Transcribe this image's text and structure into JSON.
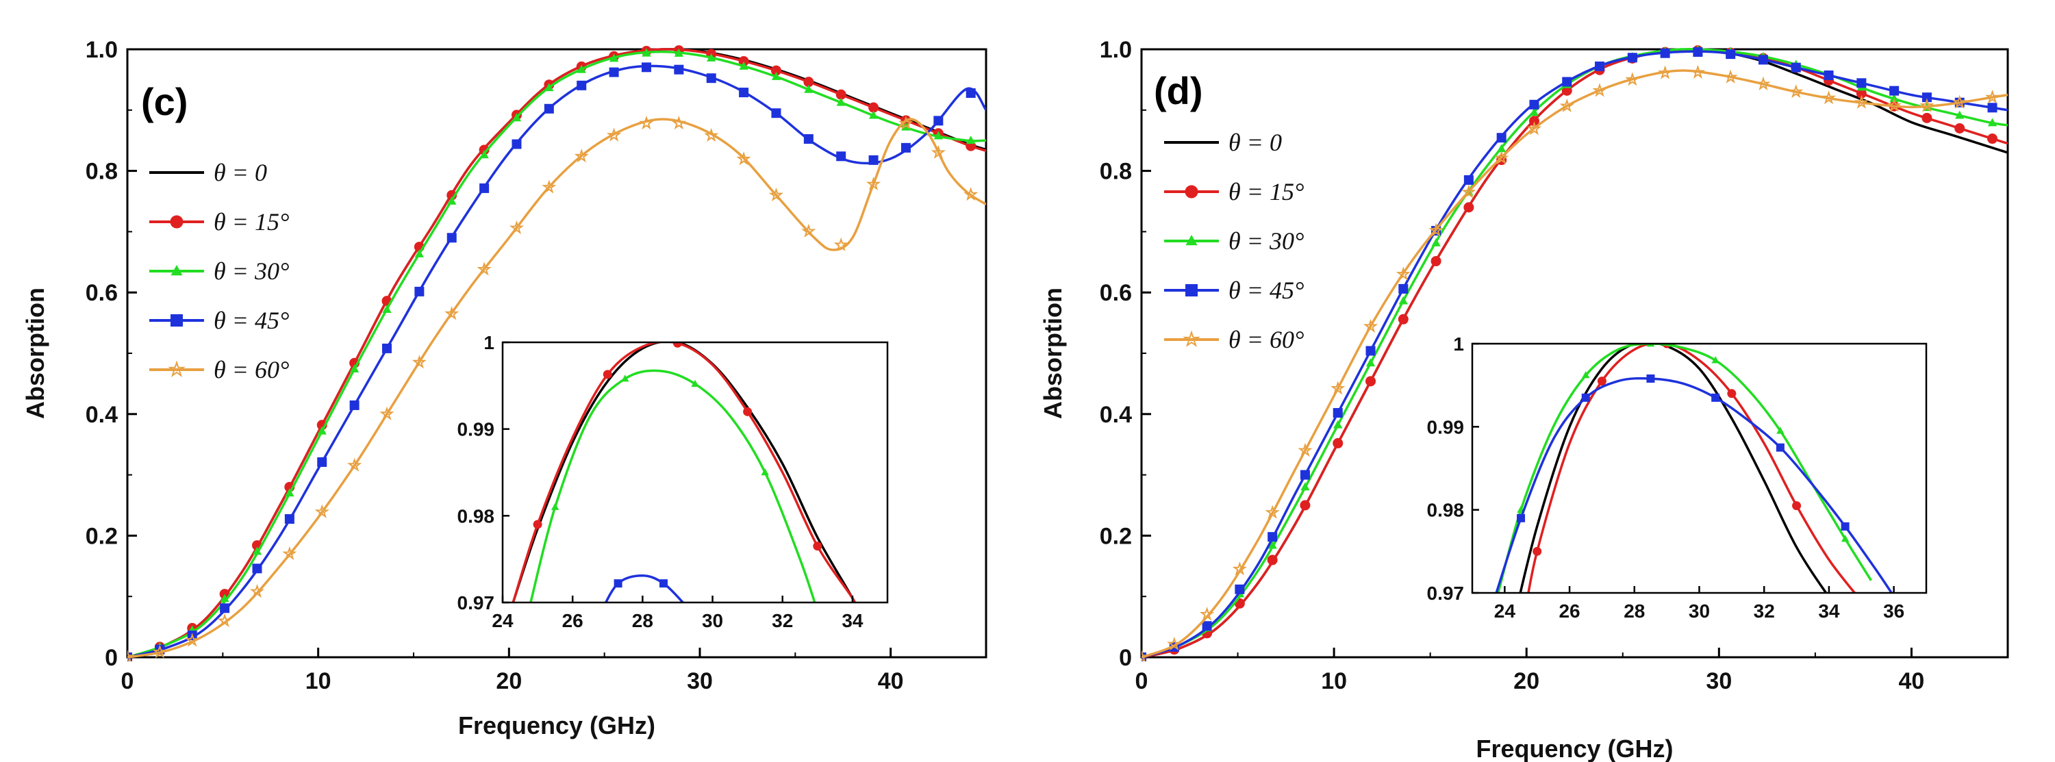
{
  "chart_data": [
    {
      "type": "line",
      "panel_label": "(c)",
      "xlabel": "Frequency (GHz)",
      "ylabel": "Absorption",
      "xlim": [
        0,
        45
      ],
      "ylim": [
        0,
        1.0
      ],
      "xticks": [
        0,
        10,
        20,
        30,
        40
      ],
      "yticks": [
        0,
        0.2,
        0.4,
        0.6,
        0.8,
        1.0
      ],
      "xtick_labels": [
        "0",
        "10",
        "20",
        "30",
        "40"
      ],
      "ytick_labels": [
        "0",
        "0.2",
        "0.4",
        "0.6",
        "0.8",
        "1.0"
      ],
      "legend_position": "upper-left",
      "series": [
        {
          "name": "θ = 0",
          "color": "#000000",
          "marker": "none",
          "x": [
            0,
            2,
            4,
            6,
            8,
            10,
            12,
            14,
            16,
            18,
            20,
            22,
            24,
            26,
            28,
            30,
            32,
            34,
            36,
            38,
            40,
            42,
            44,
            45
          ],
          "y": [
            0,
            0.02,
            0.06,
            0.14,
            0.25,
            0.37,
            0.49,
            0.61,
            0.71,
            0.81,
            0.88,
            0.94,
            0.975,
            0.993,
            1.0,
            0.997,
            0.985,
            0.967,
            0.945,
            0.92,
            0.895,
            0.87,
            0.845,
            0.835
          ]
        },
        {
          "name": "θ = 15°",
          "color": "#e02020",
          "marker": "circle",
          "x": [
            0,
            2,
            4,
            6,
            8,
            10,
            12,
            14,
            16,
            18,
            20,
            22,
            24,
            26,
            28,
            30,
            32,
            34,
            36,
            38,
            40,
            42,
            44,
            45
          ],
          "y": [
            0,
            0.02,
            0.06,
            0.14,
            0.25,
            0.37,
            0.49,
            0.61,
            0.71,
            0.81,
            0.88,
            0.94,
            0.975,
            0.993,
            1.0,
            0.996,
            0.983,
            0.965,
            0.943,
            0.918,
            0.893,
            0.868,
            0.843,
            0.833
          ]
        },
        {
          "name": "θ = 30°",
          "color": "#22dd22",
          "marker": "triangle",
          "x": [
            0,
            2,
            4,
            6,
            8,
            10,
            12,
            14,
            16,
            18,
            20,
            22,
            24,
            26,
            28,
            30,
            32,
            34,
            36,
            38,
            40,
            42,
            44,
            45
          ],
          "y": [
            0,
            0.02,
            0.055,
            0.13,
            0.24,
            0.36,
            0.48,
            0.595,
            0.7,
            0.8,
            0.875,
            0.935,
            0.97,
            0.99,
            0.996,
            0.99,
            0.975,
            0.955,
            0.93,
            0.905,
            0.88,
            0.86,
            0.85,
            0.85
          ]
        },
        {
          "name": "θ = 45°",
          "color": "#1e32dc",
          "marker": "square",
          "x": [
            0,
            2,
            4,
            6,
            8,
            10,
            12,
            14,
            16,
            18,
            20,
            22,
            24,
            26,
            28,
            30,
            32,
            34,
            36,
            38,
            40,
            42,
            44,
            45
          ],
          "y": [
            0,
            0.015,
            0.045,
            0.11,
            0.2,
            0.31,
            0.42,
            0.53,
            0.64,
            0.74,
            0.83,
            0.9,
            0.945,
            0.968,
            0.972,
            0.96,
            0.935,
            0.895,
            0.845,
            0.815,
            0.82,
            0.865,
            0.935,
            0.9
          ]
        },
        {
          "name": "θ = 60°",
          "color": "#e8a040",
          "marker": "star",
          "x": [
            0,
            2,
            4,
            6,
            8,
            10,
            12,
            14,
            16,
            18,
            20,
            22,
            24,
            26,
            28,
            30,
            32,
            34,
            36,
            37,
            38,
            39,
            40,
            41,
            42,
            43,
            44,
            45
          ],
          "y": [
            0,
            0.01,
            0.035,
            0.08,
            0.15,
            0.23,
            0.32,
            0.42,
            0.52,
            0.61,
            0.69,
            0.77,
            0.83,
            0.868,
            0.885,
            0.87,
            0.83,
            0.76,
            0.69,
            0.67,
            0.69,
            0.77,
            0.85,
            0.885,
            0.86,
            0.8,
            0.765,
            0.745
          ]
        }
      ],
      "inset": {
        "xlim": [
          24,
          35
        ],
        "ylim": [
          0.97,
          1.0
        ],
        "xticks": [
          24,
          26,
          28,
          30,
          32,
          34
        ],
        "yticks": [
          0.97,
          0.98,
          0.99,
          1.0
        ],
        "xtick_labels": [
          "24",
          "26",
          "28",
          "30",
          "32",
          "34"
        ],
        "ytick_labels": [
          "0.97",
          "0.98",
          "0.99",
          "1"
        ],
        "series": [
          {
            "name": "θ = 0",
            "color": "#000000",
            "marker": "none",
            "x": [
              24.3,
              25,
              26,
              27,
              28,
              29,
              30,
              31,
              32,
              33,
              34,
              34.45
            ],
            "y": [
              0.97,
              0.9785,
              0.9885,
              0.9955,
              0.9993,
              1.0,
              0.9975,
              0.9925,
              0.986,
              0.9775,
              0.9705,
              0.9668
            ]
          },
          {
            "name": "θ = 15°",
            "color": "#e02020",
            "marker": "circle",
            "x": [
              24.3,
              25,
              26,
              27,
              28,
              29,
              30,
              31,
              32,
              33,
              34,
              34.2
            ],
            "y": [
              0.97,
              0.979,
              0.989,
              0.9963,
              0.9995,
              0.9999,
              0.9974,
              0.992,
              0.985,
              0.9765,
              0.9705,
              0.9688
            ]
          },
          {
            "name": "θ = 30°",
            "color": "#22dd22",
            "marker": "triangle",
            "x": [
              24.8,
              25.5,
              26.5,
              27.5,
              28.5,
              29.5,
              30.5,
              31.5,
              32.5,
              33
            ],
            "y": [
              0.97,
              0.981,
              0.9915,
              0.9958,
              0.9967,
              0.9952,
              0.9915,
              0.985,
              0.975,
              0.969
            ]
          },
          {
            "name": "θ = 45°",
            "color": "#1e32dc",
            "marker": "square",
            "x": [
              26.8,
              27.3,
              28,
              28.6,
              29.2
            ],
            "y": [
              0.9688,
              0.9722,
              0.9731,
              0.9722,
              0.9698
            ]
          }
        ]
      }
    },
    {
      "type": "line",
      "panel_label": "(d)",
      "xlabel": "Frequency (GHz)",
      "ylabel": "Absorption",
      "xlim": [
        0,
        45
      ],
      "ylim": [
        0,
        1.0
      ],
      "xticks": [
        0,
        10,
        20,
        30,
        40
      ],
      "yticks": [
        0,
        0.2,
        0.4,
        0.6,
        0.8,
        1.0
      ],
      "xtick_labels": [
        "0",
        "10",
        "20",
        "30",
        "40"
      ],
      "ytick_labels": [
        "0",
        "0.2",
        "0.4",
        "0.6",
        "0.8",
        "1.0"
      ],
      "legend_position": "upper-left",
      "series": [
        {
          "name": "θ = 0",
          "color": "#000000",
          "marker": "none",
          "x": [
            0,
            2,
            4,
            6,
            8,
            10,
            12,
            14,
            16,
            18,
            20,
            22,
            24,
            26,
            28,
            30,
            32,
            34,
            36,
            38,
            40,
            42,
            44,
            45
          ],
          "y": [
            0,
            0.015,
            0.05,
            0.12,
            0.22,
            0.34,
            0.46,
            0.58,
            0.69,
            0.79,
            0.87,
            0.93,
            0.97,
            0.99,
            0.999,
            0.996,
            0.983,
            0.96,
            0.935,
            0.91,
            0.88,
            0.86,
            0.84,
            0.83
          ]
        },
        {
          "name": "θ = 15°",
          "color": "#e02020",
          "marker": "circle",
          "x": [
            0,
            2,
            4,
            6,
            8,
            10,
            12,
            14,
            16,
            18,
            20,
            22,
            24,
            26,
            28,
            30,
            32,
            34,
            36,
            38,
            40,
            42,
            44,
            45
          ],
          "y": [
            0,
            0.015,
            0.05,
            0.12,
            0.22,
            0.34,
            0.46,
            0.58,
            0.69,
            0.79,
            0.87,
            0.93,
            0.97,
            0.99,
            0.999,
            0.997,
            0.988,
            0.97,
            0.945,
            0.92,
            0.895,
            0.875,
            0.855,
            0.845
          ]
        },
        {
          "name": "θ = 30°",
          "color": "#22dd22",
          "marker": "triangle",
          "x": [
            0,
            2,
            4,
            6,
            8,
            10,
            12,
            14,
            16,
            18,
            20,
            22,
            24,
            26,
            28,
            30,
            32,
            34,
            36,
            38,
            40,
            42,
            44,
            45
          ],
          "y": [
            0,
            0.02,
            0.06,
            0.14,
            0.25,
            0.37,
            0.49,
            0.61,
            0.72,
            0.81,
            0.885,
            0.94,
            0.975,
            0.992,
            1.0,
            0.998,
            0.99,
            0.975,
            0.955,
            0.93,
            0.91,
            0.895,
            0.88,
            0.875
          ]
        },
        {
          "name": "θ = 45°",
          "color": "#1e32dc",
          "marker": "square",
          "x": [
            0,
            2,
            4,
            6,
            8,
            10,
            12,
            14,
            16,
            18,
            20,
            22,
            24,
            26,
            28,
            30,
            32,
            34,
            36,
            38,
            40,
            42,
            44,
            45
          ],
          "y": [
            0,
            0.02,
            0.065,
            0.15,
            0.27,
            0.39,
            0.51,
            0.63,
            0.74,
            0.83,
            0.9,
            0.945,
            0.975,
            0.99,
            0.996,
            0.995,
            0.985,
            0.97,
            0.955,
            0.94,
            0.925,
            0.915,
            0.905,
            0.9
          ]
        },
        {
          "name": "θ = 60°",
          "color": "#e8a040",
          "marker": "star",
          "x": [
            0,
            2,
            4,
            6,
            8,
            10,
            12,
            14,
            16,
            18,
            20,
            22,
            24,
            26,
            28,
            30,
            32,
            34,
            36,
            38,
            40,
            42,
            44,
            45
          ],
          "y": [
            0,
            0.025,
            0.09,
            0.19,
            0.31,
            0.43,
            0.55,
            0.65,
            0.73,
            0.8,
            0.86,
            0.905,
            0.935,
            0.955,
            0.965,
            0.958,
            0.945,
            0.93,
            0.918,
            0.91,
            0.905,
            0.91,
            0.92,
            0.925
          ]
        }
      ],
      "inset": {
        "xlim": [
          23,
          37
        ],
        "ylim": [
          0.97,
          1.0
        ],
        "xticks": [
          24,
          26,
          28,
          30,
          32,
          34,
          36
        ],
        "yticks": [
          0.97,
          0.98,
          0.99,
          1.0
        ],
        "xtick_labels": [
          "24",
          "26",
          "28",
          "30",
          "32",
          "34",
          "36"
        ],
        "ytick_labels": [
          "0.97",
          "0.98",
          "0.99",
          "1"
        ],
        "series": [
          {
            "name": "θ = 0",
            "color": "#000000",
            "marker": "none",
            "x": [
              24.3,
              25,
              26,
              27,
              28,
              29,
              30,
              31,
              32,
              33,
              34,
              34.6
            ],
            "y": [
              0.967,
              0.978,
              0.99,
              0.997,
              1.0,
              0.9997,
              0.997,
              0.991,
              0.9835,
              0.9755,
              0.9695,
              0.9665
            ]
          },
          {
            "name": "θ = 15°",
            "color": "#e02020",
            "marker": "circle",
            "x": [
              24.6,
              25,
              26,
              27,
              28,
              29,
              30,
              31,
              32,
              33,
              34,
              35
            ],
            "y": [
              0.967,
              0.975,
              0.988,
              0.9955,
              0.9993,
              1.0,
              0.998,
              0.994,
              0.988,
              0.9805,
              0.974,
              0.969
            ]
          },
          {
            "name": "θ = 30°",
            "color": "#22dd22",
            "marker": "triangle",
            "x": [
              23.8,
              24.5,
              25.5,
              26.5,
              27.5,
              28.5,
              29.5,
              30.5,
              31.5,
              32.5,
              33.5,
              34.5,
              35.3
            ],
            "y": [
              0.97,
              0.98,
              0.99,
              0.9962,
              0.9993,
              1.0,
              0.9995,
              0.998,
              0.9945,
              0.9895,
              0.983,
              0.9765,
              0.9715
            ]
          },
          {
            "name": "θ = 45°",
            "color": "#1e32dc",
            "marker": "square",
            "x": [
              23.7,
              24.5,
              25.5,
              26.5,
              27.5,
              28.5,
              29.5,
              30.5,
              31.5,
              32.5,
              33.5,
              34.5,
              35.5,
              36.1
            ],
            "y": [
              0.9695,
              0.979,
              0.9885,
              0.9935,
              0.9955,
              0.9958,
              0.9952,
              0.9935,
              0.9908,
              0.9875,
              0.983,
              0.978,
              0.9725,
              0.969
            ]
          }
        ]
      }
    }
  ]
}
